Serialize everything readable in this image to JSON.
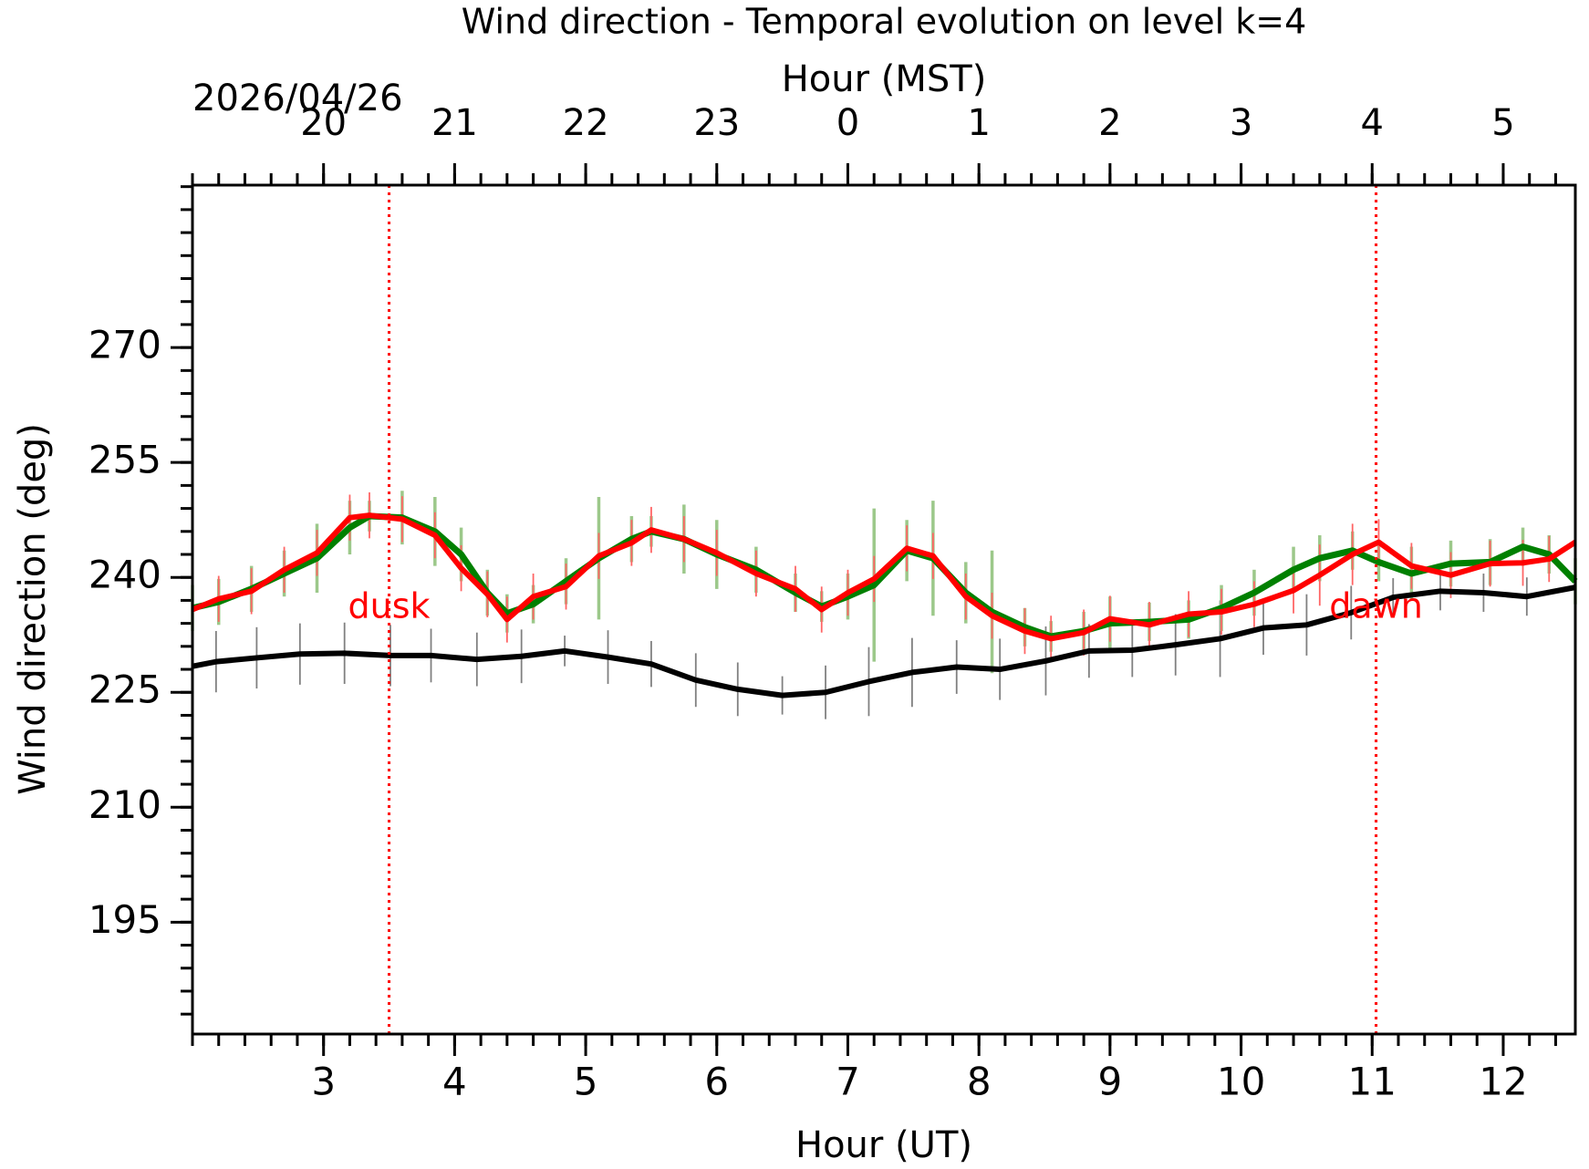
{
  "chart_data": {
    "type": "line",
    "title": "Wind direction - Temporal evolution on level k=4",
    "x_label": "Hour (UT)",
    "x2_label": "Hour (MST)",
    "y_label": "Wind direction (deg)",
    "date_label": "2026/04/26",
    "xlim": [
      2.0,
      12.55
    ],
    "ylim": [
      180.4,
      291.2
    ],
    "xticks": [
      3,
      4,
      5,
      6,
      7,
      8,
      9,
      10,
      11,
      12
    ],
    "x2ticks": [
      {
        "value": 3,
        "label": "20"
      },
      {
        "value": 4,
        "label": "21"
      },
      {
        "value": 5,
        "label": "22"
      },
      {
        "value": 6,
        "label": "23"
      },
      {
        "value": 7,
        "label": "0"
      },
      {
        "value": 8,
        "label": "1"
      },
      {
        "value": 9,
        "label": "2"
      },
      {
        "value": 10,
        "label": "3"
      },
      {
        "value": 11,
        "label": "4"
      },
      {
        "value": 12,
        "label": "5"
      }
    ],
    "yticks": [
      195,
      210,
      225,
      240,
      255,
      270
    ],
    "xminor_step": 0.2,
    "yminor_step": 3,
    "series": [
      {
        "color": "#000000",
        "error_color": "#808080",
        "x": [
          2.0,
          2.18,
          2.49,
          2.82,
          3.16,
          3.51,
          3.82,
          4.17,
          4.51,
          4.84,
          5.17,
          5.5,
          5.84,
          6.16,
          6.5,
          6.83,
          7.16,
          7.49,
          7.83,
          8.16,
          8.51,
          8.84,
          9.17,
          9.5,
          9.84,
          10.17,
          10.5,
          10.84,
          11.16,
          11.52,
          11.85,
          12.18,
          12.55
        ],
        "values": [
          228.4,
          229,
          229.5,
          230,
          230.1,
          229.8,
          229.8,
          229.3,
          229.7,
          230.4,
          229.6,
          228.7,
          226.6,
          225.4,
          224.6,
          225,
          226.4,
          227.6,
          228.3,
          228,
          229.1,
          230.4,
          230.5,
          231.2,
          232,
          233.4,
          233.8,
          235.4,
          237.4,
          238.2,
          238,
          237.5,
          238.7
        ],
        "errors": [
          4,
          4,
          4,
          4,
          4,
          4,
          3.5,
          3.5,
          3.5,
          2,
          3.5,
          3,
          3.5,
          3.5,
          2.5,
          3.5,
          4.5,
          4.5,
          3.5,
          4,
          4.5,
          3.5,
          3.5,
          4,
          5,
          3.5,
          4,
          3.5,
          2.5,
          2.5,
          2.5,
          2.5,
          3.5
        ]
      },
      {
        "color": "#008000",
        "error_color": "#9cc88a",
        "x": [
          2.0,
          2.2,
          2.45,
          2.7,
          2.95,
          3.2,
          3.35,
          3.6,
          3.85,
          4.05,
          4.25,
          4.4,
          4.6,
          4.85,
          5.1,
          5.35,
          5.5,
          5.75,
          6.0,
          6.3,
          6.6,
          6.8,
          7.0,
          7.2,
          7.45,
          7.65,
          7.9,
          8.1,
          8.35,
          8.55,
          8.8,
          9.0,
          9.3,
          9.6,
          9.85,
          10.1,
          10.4,
          10.6,
          10.85,
          11.05,
          11.3,
          11.6,
          11.9,
          12.15,
          12.35,
          12.55
        ],
        "values": [
          236,
          236.8,
          238.5,
          240.5,
          242.5,
          246.5,
          248,
          247.8,
          246,
          243,
          238,
          235.3,
          236.5,
          239.5,
          242.5,
          245,
          246,
          245,
          243,
          241,
          238,
          236.2,
          237.5,
          239,
          243.5,
          242.5,
          238,
          235.5,
          233.5,
          232.3,
          233,
          234,
          234.2,
          234.5,
          236,
          238,
          241,
          242.5,
          243.5,
          242,
          240.5,
          241.8,
          242,
          244,
          243,
          239.5
        ],
        "errors": [
          3,
          3,
          3,
          3,
          4.5,
          3.5,
          2,
          3.5,
          4.5,
          3.5,
          3,
          2.5,
          2.5,
          3,
          8,
          3,
          2,
          4.5,
          4.5,
          3,
          2.5,
          2,
          3,
          10,
          4,
          7.5,
          4,
          8,
          2.5,
          2,
          2.5,
          3.5,
          2.5,
          2.5,
          3,
          3,
          3,
          3,
          2.5,
          2.5,
          3.5,
          3,
          3,
          2.5,
          2.5,
          3
        ]
      },
      {
        "color": "#ff0000",
        "error_color": "#ff6666",
        "x": [
          2.0,
          2.2,
          2.45,
          2.7,
          2.95,
          3.2,
          3.35,
          3.6,
          3.85,
          4.05,
          4.25,
          4.4,
          4.6,
          4.85,
          5.1,
          5.35,
          5.5,
          5.75,
          6.0,
          6.3,
          6.6,
          6.8,
          7.0,
          7.2,
          7.45,
          7.65,
          7.9,
          8.1,
          8.35,
          8.55,
          8.8,
          9.0,
          9.3,
          9.6,
          9.85,
          10.1,
          10.4,
          10.6,
          10.85,
          11.05,
          11.3,
          11.6,
          11.9,
          12.15,
          12.35,
          12.55
        ],
        "values": [
          235.8,
          237.2,
          238.2,
          241,
          243.2,
          247.8,
          248.1,
          247.6,
          245.5,
          241.2,
          237.8,
          234.5,
          237.5,
          238.8,
          242.8,
          244.5,
          246.2,
          245,
          243.2,
          240.5,
          238.5,
          235.8,
          238,
          239.8,
          243.8,
          242.8,
          237.5,
          235,
          233,
          232,
          232.8,
          234.6,
          233.8,
          235.2,
          235.5,
          236.5,
          238.3,
          240.3,
          243,
          244.6,
          241.5,
          240.3,
          241.8,
          241.9,
          242.4,
          244.6
        ],
        "errors": [
          3,
          3,
          3,
          3,
          3,
          3,
          3,
          3,
          3,
          3,
          3,
          3,
          3,
          3,
          3,
          3,
          3,
          3,
          3,
          3,
          3,
          3,
          3,
          3,
          3,
          3,
          3,
          3,
          3,
          3,
          3,
          3,
          3,
          3,
          3,
          3,
          3,
          4,
          4,
          3,
          3,
          3,
          3,
          3,
          3,
          3
        ]
      }
    ],
    "vlines": [
      {
        "x": 3.5,
        "label": "dusk",
        "label_y": 236
      },
      {
        "x": 11.03,
        "label": "dawn",
        "label_y": 236
      }
    ],
    "vline_color": "#ff0000"
  }
}
